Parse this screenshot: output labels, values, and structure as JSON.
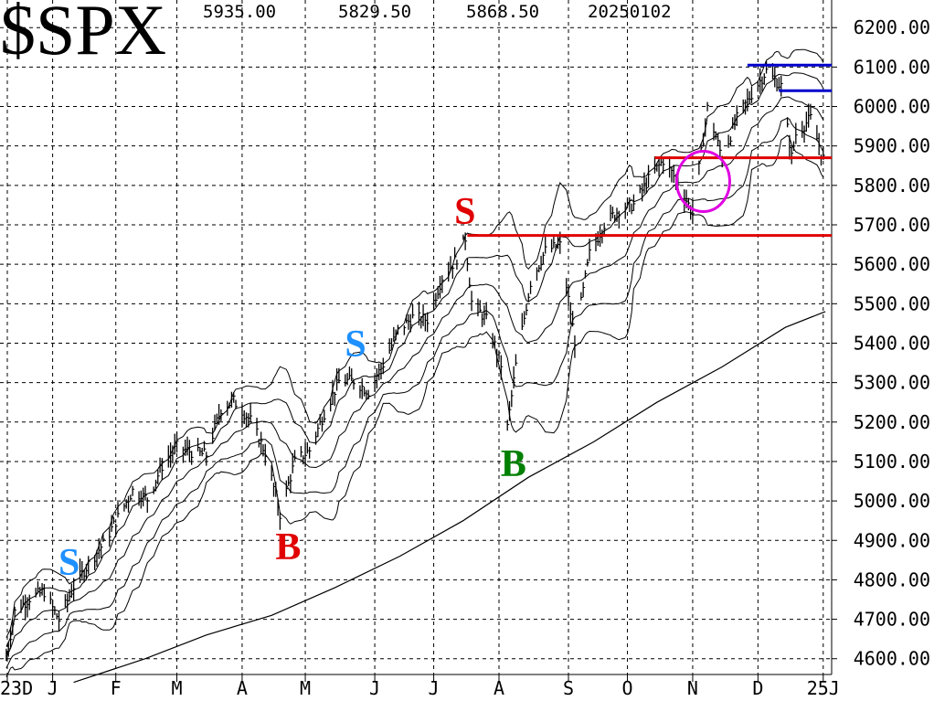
{
  "title": "$SPX",
  "header_values": [
    "5935.00",
    "5829.50",
    "5868.50",
    "20250102"
  ],
  "colors": {
    "price": "#000000",
    "red_line": "#e00000",
    "blue_line": "#0000cc",
    "circle": "#e000e0",
    "signal_red": "#e00000",
    "signal_blue": "#1e90ff",
    "signal_green": "#008000"
  },
  "signals": [
    {
      "label": "S",
      "color": "#1e90ff",
      "x": "2024-01-10",
      "y": 4840
    },
    {
      "label": "B",
      "color": "#e00000",
      "x": "2024-04-22",
      "y": 4880
    },
    {
      "label": "S",
      "color": "#1e90ff",
      "x": "2024-05-25",
      "y": 5395
    },
    {
      "label": "S",
      "color": "#e00000",
      "x": "2024-07-16",
      "y": 5730
    },
    {
      "label": "B",
      "color": "#008000",
      "x": "2024-08-07",
      "y": 5090
    },
    {
      "label": "S",
      "color": "#1e90ff",
      "x": "",
      "y": ""
    }
  ],
  "chart_data": {
    "type": "line",
    "title": "$SPX",
    "x_range": [
      "2023-12-08",
      "2025-01-06"
    ],
    "ylim": [
      4560,
      6270
    ],
    "y_ticks": [
      "6200.00",
      "6100.00",
      "6000.00",
      "5900.00",
      "5800.00",
      "5700.00",
      "5600.00",
      "5500.00",
      "5400.00",
      "5300.00",
      "5200.00",
      "5100.00",
      "5000.00",
      "4900.00",
      "4800.00",
      "4700.00",
      "4600.00"
    ],
    "x_tick_labels": [
      "23D",
      "J",
      "F",
      "M",
      "A",
      "M",
      "J",
      "J",
      "A",
      "S",
      "O",
      "N",
      "D",
      "25J"
    ],
    "x_tick_dates": [
      "2023-12-01",
      "2024-01-02",
      "2024-02-01",
      "2024-03-01",
      "2024-04-01",
      "2024-05-01",
      "2024-06-03",
      "2024-07-01",
      "2024-08-01",
      "2024-09-03",
      "2024-10-01",
      "2024-11-01",
      "2024-12-02",
      "2025-01-02"
    ],
    "grid": true,
    "series": [
      {
        "x": [
          "2023-12-11",
          "2023-12-15",
          "2023-12-22",
          "2023-12-29",
          "2024-01-05",
          "2024-01-12",
          "2024-01-19",
          "2024-01-26",
          "2024-02-02",
          "2024-02-09",
          "2024-02-16",
          "2024-02-23",
          "2024-03-01",
          "2024-03-08",
          "2024-03-15",
          "2024-03-22",
          "2024-03-28",
          "2024-04-05",
          "2024-04-12",
          "2024-04-19",
          "2024-04-26",
          "2024-05-03",
          "2024-05-10",
          "2024-05-17",
          "2024-05-24",
          "2024-05-31",
          "2024-06-07",
          "2024-06-14",
          "2024-06-21",
          "2024-06-28",
          "2024-07-05",
          "2024-07-12",
          "2024-07-16",
          "2024-07-19",
          "2024-07-26",
          "2024-08-02",
          "2024-08-05",
          "2024-08-09",
          "2024-08-16",
          "2024-08-23",
          "2024-08-30",
          "2024-09-06",
          "2024-09-13",
          "2024-09-20",
          "2024-09-27",
          "2024-10-04",
          "2024-10-11",
          "2024-10-18",
          "2024-10-25",
          "2024-11-01",
          "2024-11-08",
          "2024-11-15",
          "2024-11-22",
          "2024-11-29",
          "2024-12-06",
          "2024-12-13",
          "2024-12-18",
          "2024-12-20",
          "2024-12-27",
          "2025-01-02"
        ],
        "y": [
          4604,
          4719,
          4754,
          4770,
          4698,
          4784,
          4840,
          4891,
          4958,
          5026,
          5005,
          5089,
          5137,
          5124,
          5117,
          5234,
          5254,
          5204,
          5123,
          4967,
          5100,
          5128,
          5223,
          5303,
          5305,
          5278,
          5347,
          5431,
          5465,
          5460,
          5567,
          5615,
          5667,
          5505,
          5459,
          5346,
          5186,
          5344,
          5554,
          5634,
          5648,
          5408,
          5626,
          5702,
          5738,
          5751,
          5815,
          5864,
          5808,
          5729,
          5995,
          5870,
          5969,
          6032,
          6090,
          6051,
          5872,
          5930,
          5970,
          5868
        ]
      },
      {
        "x": [],
        "y": []
      },
      {
        "x": [],
        "y": []
      },
      {
        "x": [],
        "y": []
      },
      {
        "x": [],
        "y": []
      },
      {
        "x": [],
        "y": []
      },
      {
        "x": [
          "2024-01-12",
          "2024-02-15",
          "2024-03-15",
          "2024-04-15",
          "2024-05-15",
          "2024-06-15",
          "2024-07-15",
          "2024-08-15",
          "2024-09-15",
          "2024-10-15",
          "2024-11-15",
          "2024-12-15",
          "2025-01-03"
        ],
        "y": [
          4540,
          4600,
          4660,
          4710,
          4780,
          4860,
          4950,
          5060,
          5150,
          5250,
          5340,
          5440,
          5480
        ]
      }
    ],
    "horizontal_lines": [
      {
        "y": 5673,
        "from": "2024-07-17",
        "to": "2025-01-06",
        "color": "#e00000"
      },
      {
        "y": 5870,
        "from": "2024-10-14",
        "to": "2025-01-06",
        "color": "#e00000"
      },
      {
        "y": 6105,
        "from": "2024-11-27",
        "to": "2025-01-06",
        "color": "#0000cc"
      },
      {
        "y": 6040,
        "from": "2024-12-12",
        "to": "2025-01-06",
        "color": "#0000cc"
      }
    ],
    "circle_annotation": {
      "x": "2024-11-06",
      "y": 5810,
      "color": "#e000e0"
    }
  }
}
